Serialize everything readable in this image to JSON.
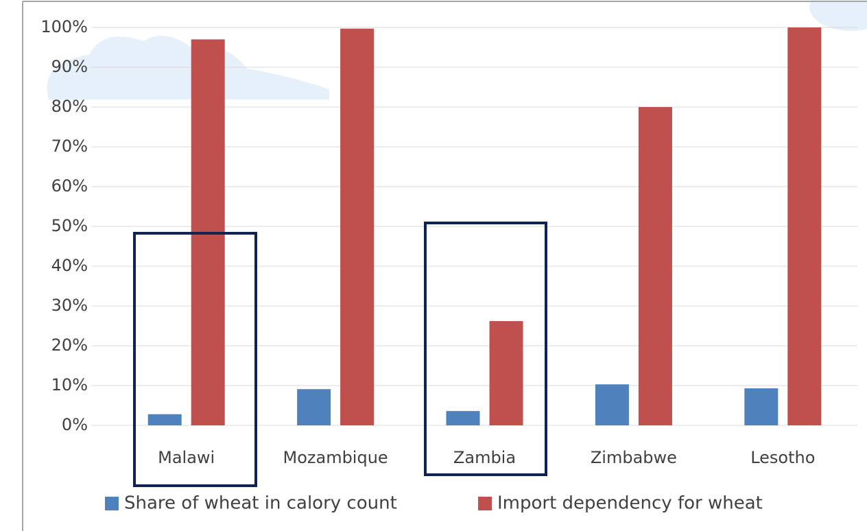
{
  "chart_data": {
    "type": "bar",
    "categories": [
      "Malawi",
      "Mozambique",
      "Zambia",
      "Zimbabwe",
      "Lesotho"
    ],
    "series": [
      {
        "name": "Share of wheat in calory count",
        "color": "#4f81bd",
        "values": [
          2.8,
          9.1,
          3.6,
          10.3,
          9.3
        ]
      },
      {
        "name": "Import dependency for wheat",
        "color": "#c0504d",
        "values": [
          97,
          99.7,
          26.2,
          80,
          100
        ]
      }
    ],
    "ylim": [
      0,
      100
    ],
    "yticks": [
      {
        "value": 0,
        "label": "0%"
      },
      {
        "value": 10,
        "label": "10%"
      },
      {
        "value": 20,
        "label": "20%"
      },
      {
        "value": 30,
        "label": "30%"
      },
      {
        "value": 40,
        "label": "40%"
      },
      {
        "value": 50,
        "label": "50%"
      },
      {
        "value": 60,
        "label": "60%"
      },
      {
        "value": 70,
        "label": "70%"
      },
      {
        "value": 80,
        "label": "80%"
      },
      {
        "value": 90,
        "label": "90%"
      },
      {
        "value": 100,
        "label": "100%"
      }
    ],
    "grid": true
  }
}
